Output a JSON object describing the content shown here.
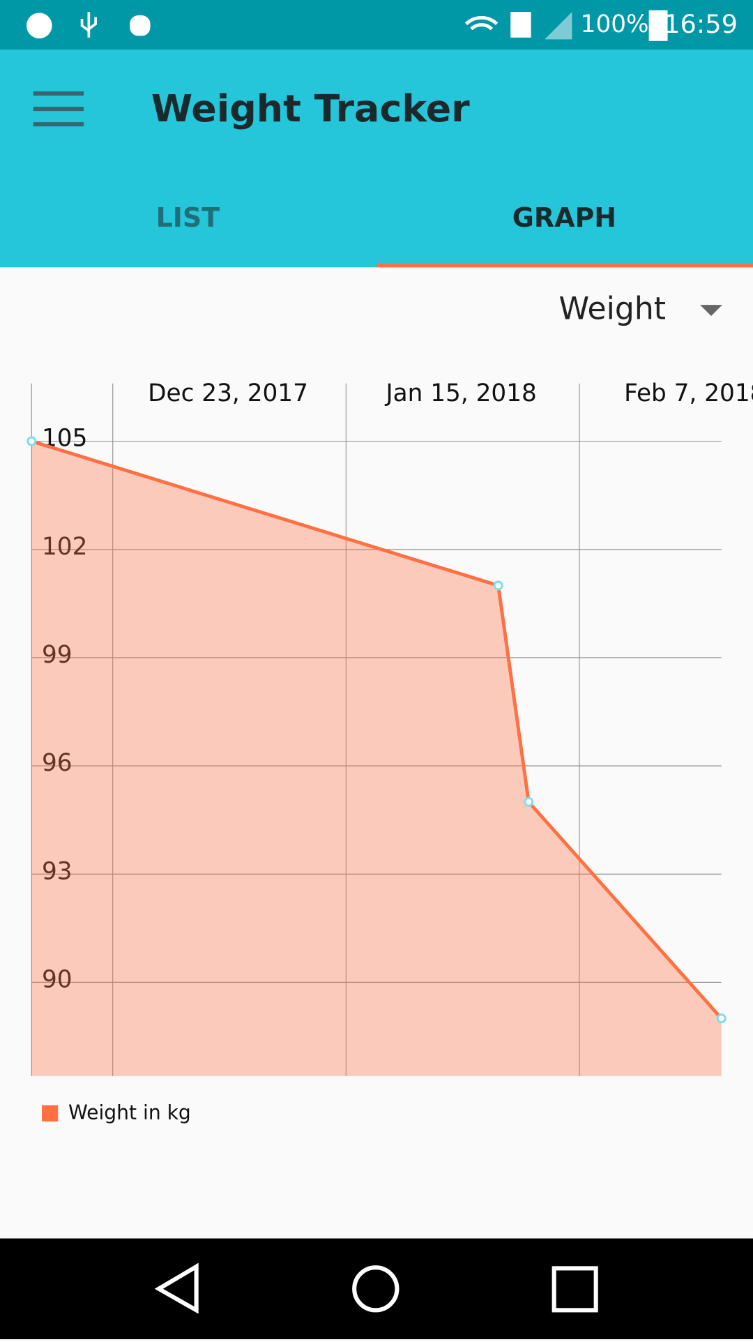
{
  "status_bar": {
    "battery": "100%",
    "time": "16:59"
  },
  "app_bar": {
    "title": "Weight Tracker"
  },
  "tabs": [
    "LIST",
    "GRAPH"
  ],
  "dropdown": {
    "selected": "Weight"
  },
  "chart_data": {
    "type": "area",
    "x": [
      "2017-12-15",
      "2018-01-30",
      "2018-02-02",
      "2018-02-21"
    ],
    "series": [
      {
        "name": "Weight in kg",
        "color": "#ff7043",
        "values": [
          105,
          101,
          95,
          89
        ]
      }
    ],
    "xlim": [
      "2017-12-15",
      "2018-02-21"
    ],
    "xticks": [
      {
        "value": "2017-12-23",
        "label": "Dec 23, 2017"
      },
      {
        "value": "2018-01-15",
        "label": "Jan 15, 2018"
      },
      {
        "value": "2018-02-07",
        "label": "Feb 7, 2018"
      }
    ],
    "ylim": [
      87.4,
      106.6
    ],
    "yticks": [
      90,
      93,
      96,
      99,
      102,
      105
    ],
    "grid": true
  }
}
